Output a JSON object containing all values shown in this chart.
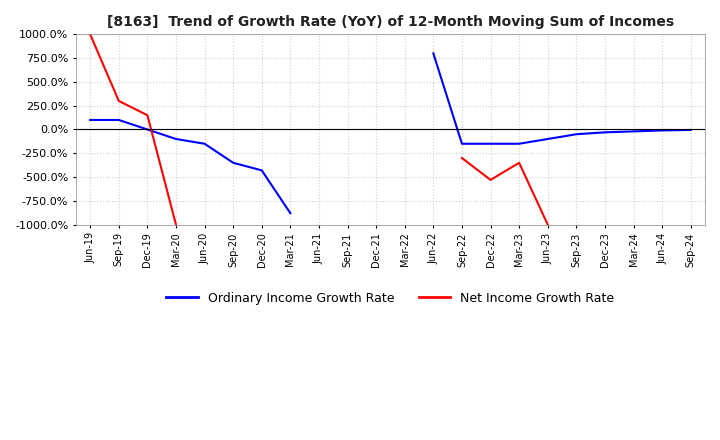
{
  "title": "[8163]  Trend of Growth Rate (YoY) of 12-Month Moving Sum of Incomes",
  "ylim": [
    -1000,
    1000
  ],
  "yticks": [
    1000,
    750,
    500,
    250,
    0,
    -250,
    -500,
    -750,
    -1000
  ],
  "ytick_labels": [
    "1000.0%",
    "750.0%",
    "500.0%",
    "250.0%",
    "0.0%",
    "-250.0%",
    "-500.0%",
    "-750.0%",
    "-1000.0%"
  ],
  "legend_labels": [
    "Ordinary Income Growth Rate",
    "Net Income Growth Rate"
  ],
  "background_color": "#ffffff",
  "grid_color": "#d0d0d0",
  "all_dates": [
    "Jun-19",
    "Sep-19",
    "Dec-19",
    "Mar-20",
    "Jun-20",
    "Sep-20",
    "Dec-20",
    "Mar-21",
    "Jun-21",
    "Sep-21",
    "Dec-21",
    "Mar-22",
    "Jun-22",
    "Sep-22",
    "Dec-22",
    "Mar-23",
    "Jun-23",
    "Sep-23",
    "Dec-23",
    "Mar-24",
    "Jun-24",
    "Sep-24"
  ],
  "ordinary_segments": [
    {
      "dates": [
        "Jun-19",
        "Sep-19",
        "Dec-19",
        "Mar-20",
        "Jun-20",
        "Sep-20",
        "Dec-20",
        "Mar-21"
      ],
      "values": [
        100,
        100,
        0,
        -100,
        -150,
        -350,
        -430,
        -880
      ]
    },
    {
      "dates": [
        "Jun-22",
        "Sep-22",
        "Dec-22",
        "Mar-23",
        "Jun-23",
        "Sep-23",
        "Dec-23",
        "Mar-24",
        "Jun-24",
        "Sep-24"
      ],
      "values": [
        800,
        -150,
        -150,
        -150,
        -100,
        -50,
        -30,
        -20,
        -10,
        -5
      ]
    }
  ],
  "net_segments": [
    {
      "dates": [
        "Jun-19",
        "Sep-19",
        "Dec-19",
        "Mar-20"
      ],
      "values": [
        1000,
        300,
        150,
        -1000
      ]
    },
    {
      "dates": [
        "Sep-22",
        "Dec-22",
        "Mar-23",
        "Jun-23"
      ],
      "values": [
        -300,
        -530,
        -350,
        -1000
      ]
    }
  ]
}
